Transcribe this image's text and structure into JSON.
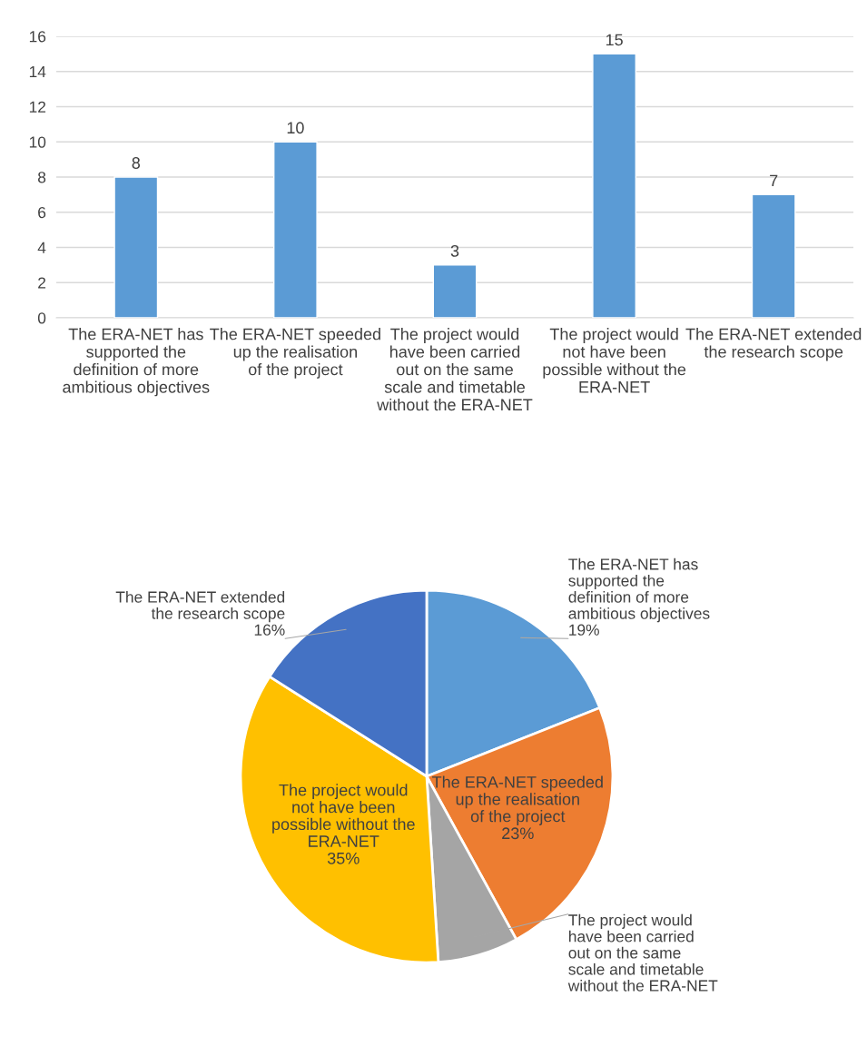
{
  "chart_data": [
    {
      "type": "bar",
      "categories": [
        "The ERA-NET has supported the definition of more ambitious objectives",
        "The ERA-NET speeded up the realisation of the project",
        "The project would have been carried out on the same scale and timetable without the ERA-NET",
        "The project would not have been possible without the ERA-NET",
        "The ERA-NET extended the research scope"
      ],
      "values": [
        8,
        10,
        3,
        15,
        7
      ],
      "color": "#5b9bd5",
      "ylim": [
        0,
        16
      ],
      "yticks": [
        0,
        2,
        4,
        6,
        8,
        10,
        12,
        14,
        16
      ],
      "grid": "y",
      "data_labels": true
    },
    {
      "type": "pie",
      "categories": [
        "The ERA-NET has supported the definition of more ambitious objectives",
        "The ERA-NET speeded up the realisation of the project",
        "The project would have been carried out on the same scale and timetable without the ERA-NET",
        "The project would not have been possible without the ERA-NET",
        "The ERA-NET extended the research scope"
      ],
      "values": [
        19,
        23,
        7,
        35,
        16
      ],
      "colors": [
        "#5b9bd5",
        "#ed7d31",
        "#a5a5a5",
        "#ffc000",
        "#4472c4"
      ],
      "value_labels": [
        "19%",
        "23%",
        null,
        "35%",
        "16%"
      ]
    }
  ]
}
